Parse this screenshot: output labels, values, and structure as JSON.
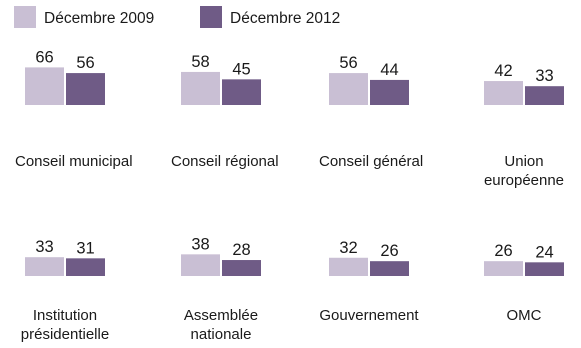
{
  "colors": {
    "series_2009": "#c9bfd4",
    "series_2012": "#6f5b86",
    "text": "#1a1a1a"
  },
  "chart_data": {
    "type": "bar",
    "title": "",
    "xlabel": "",
    "ylabel": "",
    "ylim": [
      0,
      80
    ],
    "grid": false,
    "legend": "top-left",
    "series": [
      {
        "name": "Décembre 2009",
        "values": [
          66,
          58,
          56,
          42,
          33,
          38,
          32,
          26
        ]
      },
      {
        "name": "Décembre 2012",
        "values": [
          56,
          45,
          44,
          33,
          31,
          28,
          26,
          24
        ]
      }
    ],
    "categories": [
      [
        "Conseil municipal"
      ],
      [
        "Conseil régional"
      ],
      [
        "Conseil général"
      ],
      [
        "Union",
        "européenne"
      ],
      [
        "Institution",
        "présidentielle"
      ],
      [
        "Assemblée",
        "nationale"
      ],
      [
        "Gouvernement"
      ],
      [
        "OMC"
      ]
    ]
  }
}
